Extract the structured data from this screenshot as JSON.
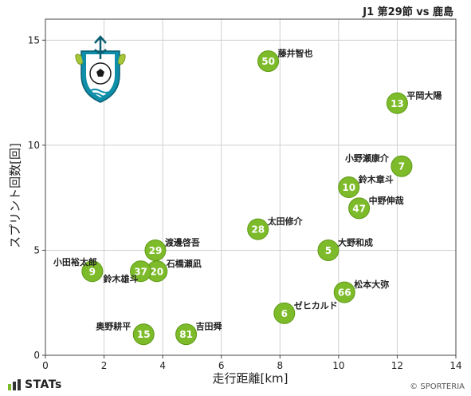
{
  "header": {
    "title": "J1 第29節 vs 鹿島"
  },
  "footer": {
    "brand": "STATs",
    "credit": "© SPORTERIA"
  },
  "colors": {
    "marker": "#7dbb2a",
    "marker_edge": "#5e9a16",
    "grid": "#d0d0d0",
    "text": "#222222"
  },
  "chart_data": {
    "type": "scatter",
    "title": "J1 第29節 vs 鹿島",
    "xlabel": "走行距離[km]",
    "ylabel": "スプリント回数[回]",
    "xlim": [
      0,
      14
    ],
    "ylim": [
      0,
      16
    ],
    "xticks": [
      0,
      2,
      4,
      6,
      8,
      10,
      12,
      14
    ],
    "yticks": [
      0,
      5,
      10,
      15
    ],
    "grid": true,
    "points": [
      {
        "number": "50",
        "name": "藤井智也",
        "x": 7.6,
        "y": 14,
        "label_pos": "right"
      },
      {
        "number": "13",
        "name": "平岡大陽",
        "x": 12.0,
        "y": 12,
        "label_pos": "right"
      },
      {
        "number": "7",
        "name": "小野瀬康介",
        "x": 12.15,
        "y": 9,
        "label_pos": "left"
      },
      {
        "number": "10",
        "name": "鈴木章斗",
        "x": 10.35,
        "y": 8,
        "label_pos": "right"
      },
      {
        "number": "47",
        "name": "中野伸哉",
        "x": 10.7,
        "y": 7,
        "label_pos": "right"
      },
      {
        "number": "28",
        "name": "太田修介",
        "x": 7.25,
        "y": 6,
        "label_pos": "right"
      },
      {
        "number": "5",
        "name": "大野和成",
        "x": 9.65,
        "y": 5,
        "label_pos": "right"
      },
      {
        "number": "29",
        "name": "渡邊啓吾",
        "x": 3.75,
        "y": 5,
        "label_pos": "right"
      },
      {
        "number": "20",
        "name": "石橋瀬凪",
        "x": 3.8,
        "y": 4,
        "label_pos": "right"
      },
      {
        "number": "37",
        "name": "鈴木雄斗",
        "x": 3.25,
        "y": 4,
        "label_pos": "bottom-left"
      },
      {
        "number": "9",
        "name": "小田裕太郎",
        "x": 1.6,
        "y": 4,
        "label_pos": "top-left"
      },
      {
        "number": "66",
        "name": "松本大弥",
        "x": 10.2,
        "y": 3,
        "label_pos": "right"
      },
      {
        "number": "6",
        "name": "ゼヒカルド",
        "x": 8.15,
        "y": 2,
        "label_pos": "right"
      },
      {
        "number": "15",
        "name": "奥野耕平",
        "x": 3.35,
        "y": 1,
        "label_pos": "left"
      },
      {
        "number": "81",
        "name": "吉田舜",
        "x": 4.8,
        "y": 1,
        "label_pos": "right"
      }
    ]
  }
}
